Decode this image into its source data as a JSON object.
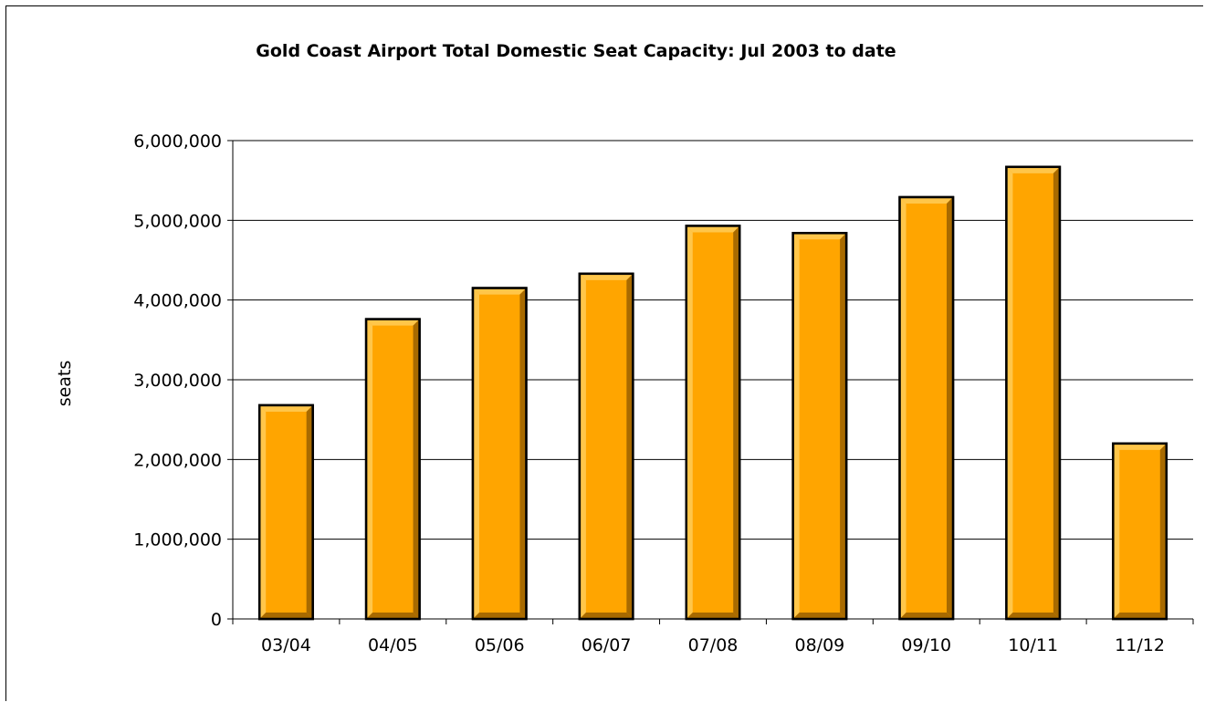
{
  "chart_data": {
    "type": "bar",
    "title": "Gold Coast Airport Total Domestic Seat Capacity: Jul 2003 to date",
    "xlabel": "",
    "ylabel": "seats",
    "categories": [
      "03/04",
      "04/05",
      "05/06",
      "06/07",
      "07/08",
      "08/09",
      "09/10",
      "10/11",
      "11/12"
    ],
    "values": [
      2680000,
      3760000,
      4150000,
      4330000,
      4930000,
      4840000,
      5290000,
      5670000,
      2200000
    ],
    "ylim": [
      0,
      6000000
    ],
    "yticks": [
      0,
      1000000,
      2000000,
      3000000,
      4000000,
      5000000,
      6000000
    ],
    "ytick_labels": [
      "0",
      "1,000,000",
      "2,000,000",
      "3,000,000",
      "4,000,000",
      "5,000,000",
      "6,000,000"
    ],
    "grid": true,
    "legend": "none",
    "colors": {
      "bar_fill": "#FFA500",
      "bar_highlight": "#FFC64A",
      "bar_shadow": "#A86A00",
      "bar_outline": "#000000",
      "gridline": "#000000"
    }
  }
}
